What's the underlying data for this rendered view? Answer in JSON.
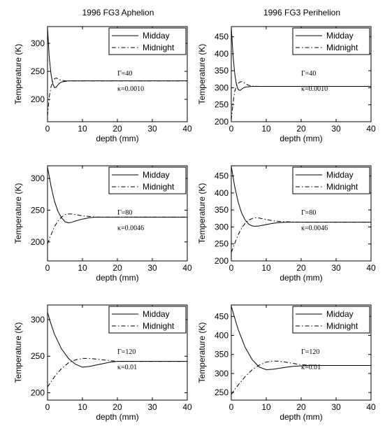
{
  "column_titles": [
    "1996 FG3 Aphelion",
    "1996 FG3 Perihelion"
  ],
  "chart_data": [
    {
      "type": "line",
      "column": 0,
      "row": 0,
      "title": "1996 FG3 Aphelion",
      "xlabel": "depth (mm)",
      "ylabel": "Temperature (K)",
      "xlim": [
        0,
        40
      ],
      "ylim": [
        160,
        330
      ],
      "xticks": [
        0,
        10,
        20,
        30,
        40
      ],
      "yticks": [
        200,
        250,
        300
      ],
      "legend": [
        "Midday",
        "Midnight"
      ],
      "annotations": [
        "Γ=40",
        "κ=0.0010"
      ],
      "series": [
        {
          "name": "Midday",
          "style": "solid",
          "x": [
            0,
            0.5,
            1,
            1.5,
            2,
            2.5,
            3,
            3.5,
            4,
            5,
            6,
            8,
            10,
            15,
            20,
            30,
            40
          ],
          "y": [
            328,
            275,
            245,
            228,
            221,
            222,
            226,
            229,
            231,
            232,
            233,
            233,
            233,
            233,
            233,
            233,
            233
          ]
        },
        {
          "name": "Midnight",
          "style": "dashdot",
          "x": [
            0,
            0.5,
            1,
            1.5,
            2,
            2.5,
            3,
            3.5,
            4,
            5,
            6,
            8,
            10,
            15,
            20,
            30,
            40
          ],
          "y": [
            170,
            205,
            222,
            232,
            237,
            238,
            237,
            235,
            234,
            233,
            233,
            233,
            233,
            233,
            233,
            233,
            233
          ]
        }
      ]
    },
    {
      "type": "line",
      "column": 1,
      "row": 0,
      "title": "1996 FG3 Perihelion",
      "xlabel": "depth (mm)",
      "ylabel": "Temperature (K)",
      "xlim": [
        0,
        40
      ],
      "ylim": [
        200,
        480
      ],
      "xticks": [
        0,
        10,
        20,
        30,
        40
      ],
      "yticks": [
        200,
        250,
        300,
        350,
        400,
        450
      ],
      "legend": [
        "Midday",
        "Midnight"
      ],
      "annotations": [
        "Γ=40",
        "κ=0.0010"
      ],
      "series": [
        {
          "name": "Midday",
          "style": "solid",
          "x": [
            0,
            0.5,
            1,
            1.5,
            2,
            2.5,
            3,
            3.5,
            4,
            5,
            6,
            8,
            10,
            15,
            20,
            30,
            40
          ],
          "y": [
            478,
            395,
            340,
            308,
            294,
            292,
            296,
            300,
            302,
            303,
            304,
            304,
            304,
            304,
            304,
            304,
            304
          ]
        },
        {
          "name": "Midnight",
          "style": "dashdot",
          "x": [
            0,
            0.5,
            1,
            1.5,
            2,
            2.5,
            3,
            3.5,
            4,
            5,
            6,
            8,
            10,
            15,
            20,
            30,
            40
          ],
          "y": [
            205,
            255,
            290,
            305,
            313,
            317,
            318,
            316,
            312,
            307,
            305,
            304,
            304,
            304,
            304,
            304,
            304
          ]
        }
      ]
    },
    {
      "type": "line",
      "column": 0,
      "row": 1,
      "xlabel": "depth (mm)",
      "ylabel": "Temperature (K)",
      "xlim": [
        0,
        40
      ],
      "ylim": [
        170,
        320
      ],
      "xticks": [
        0,
        10,
        20,
        30,
        40
      ],
      "yticks": [
        200,
        250,
        300
      ],
      "legend": [
        "Midday",
        "Midnight"
      ],
      "annotations": [
        "Γ=80",
        "κ=0.0046"
      ],
      "series": [
        {
          "name": "Midday",
          "style": "solid",
          "x": [
            0,
            1,
            2,
            3,
            4,
            5,
            6,
            7,
            8,
            10,
            12,
            14,
            16,
            20,
            25,
            30,
            40
          ],
          "y": [
            318,
            288,
            264,
            248,
            238,
            232,
            230,
            231,
            233,
            236,
            238,
            239,
            239,
            239,
            239,
            239,
            239
          ]
        },
        {
          "name": "Midnight",
          "style": "dashdot",
          "x": [
            0,
            1,
            2,
            3,
            4,
            5,
            6,
            7,
            8,
            10,
            12,
            14,
            16,
            20,
            25,
            30,
            40
          ],
          "y": [
            197,
            211,
            224,
            233,
            239,
            243,
            244,
            244,
            243,
            241,
            240,
            239,
            239,
            239,
            239,
            239,
            239
          ]
        }
      ]
    },
    {
      "type": "line",
      "column": 1,
      "row": 1,
      "xlabel": "depth (mm)",
      "ylabel": "Temperature (K)",
      "xlim": [
        0,
        40
      ],
      "ylim": [
        200,
        480
      ],
      "xticks": [
        0,
        10,
        20,
        30,
        40
      ],
      "yticks": [
        200,
        250,
        300,
        350,
        400,
        450
      ],
      "legend": [
        "Midday",
        "Midnight"
      ],
      "annotations": [
        "Γ=80",
        "κ=0.0046"
      ],
      "series": [
        {
          "name": "Midday",
          "style": "solid",
          "x": [
            0,
            1,
            2,
            3,
            4,
            5,
            6,
            7,
            8,
            10,
            12,
            14,
            16,
            20,
            25,
            30,
            40
          ],
          "y": [
            478,
            418,
            372,
            340,
            320,
            308,
            303,
            302,
            303,
            307,
            311,
            313,
            314,
            314,
            314,
            314,
            314
          ]
        },
        {
          "name": "Midnight",
          "style": "dashdot",
          "x": [
            0,
            1,
            2,
            3,
            4,
            5,
            6,
            7,
            8,
            10,
            12,
            14,
            16,
            20,
            25,
            30,
            40
          ],
          "y": [
            225,
            252,
            278,
            297,
            311,
            320,
            325,
            327,
            326,
            322,
            318,
            316,
            315,
            314,
            314,
            314,
            314
          ]
        }
      ]
    },
    {
      "type": "line",
      "column": 0,
      "row": 2,
      "xlabel": "depth (mm)",
      "ylabel": "Temperature (K)",
      "xlim": [
        0,
        40
      ],
      "ylim": [
        190,
        320
      ],
      "xticks": [
        0,
        10,
        20,
        30,
        40
      ],
      "yticks": [
        200,
        250,
        300
      ],
      "legend": [
        "Midday",
        "Midnight"
      ],
      "annotations": [
        "Γ=120",
        "κ=0.01"
      ],
      "series": [
        {
          "name": "Midday",
          "style": "solid",
          "x": [
            0,
            1,
            2,
            4,
            6,
            8,
            10,
            12,
            14,
            16,
            18,
            20,
            22,
            25,
            30,
            40
          ],
          "y": [
            310,
            294,
            280,
            260,
            247,
            239,
            235,
            236,
            238,
            240,
            242,
            243,
            243,
            243,
            243,
            243
          ]
        },
        {
          "name": "Midnight",
          "style": "dashdot",
          "x": [
            0,
            1,
            2,
            4,
            6,
            8,
            10,
            12,
            14,
            16,
            18,
            20,
            22,
            25,
            30,
            40
          ],
          "y": [
            208,
            215,
            222,
            233,
            241,
            245,
            247,
            247,
            246,
            245,
            244,
            243,
            243,
            243,
            243,
            243
          ]
        }
      ]
    },
    {
      "type": "line",
      "column": 1,
      "row": 2,
      "xlabel": "depth (mm)",
      "ylabel": "Temperature (K)",
      "xlim": [
        0,
        40
      ],
      "ylim": [
        230,
        480
      ],
      "xticks": [
        0,
        10,
        20,
        30,
        40
      ],
      "yticks": [
        250,
        300,
        350,
        400,
        450
      ],
      "legend": [
        "Midday",
        "Midnight"
      ],
      "annotations": [
        "Γ=120",
        "κ=0.01"
      ],
      "series": [
        {
          "name": "Midday",
          "style": "solid",
          "x": [
            0,
            1,
            2,
            4,
            6,
            8,
            10,
            12,
            14,
            16,
            18,
            20,
            22,
            25,
            30,
            40
          ],
          "y": [
            477,
            445,
            415,
            368,
            336,
            317,
            310,
            311,
            314,
            317,
            319,
            320,
            321,
            321,
            321,
            321
          ]
        },
        {
          "name": "Midnight",
          "style": "dashdot",
          "x": [
            0,
            1,
            2,
            4,
            6,
            8,
            10,
            12,
            14,
            16,
            18,
            20,
            22,
            25,
            30,
            40
          ],
          "y": [
            245,
            258,
            270,
            292,
            310,
            322,
            330,
            333,
            332,
            329,
            326,
            323,
            322,
            321,
            321,
            321
          ]
        }
      ]
    }
  ]
}
